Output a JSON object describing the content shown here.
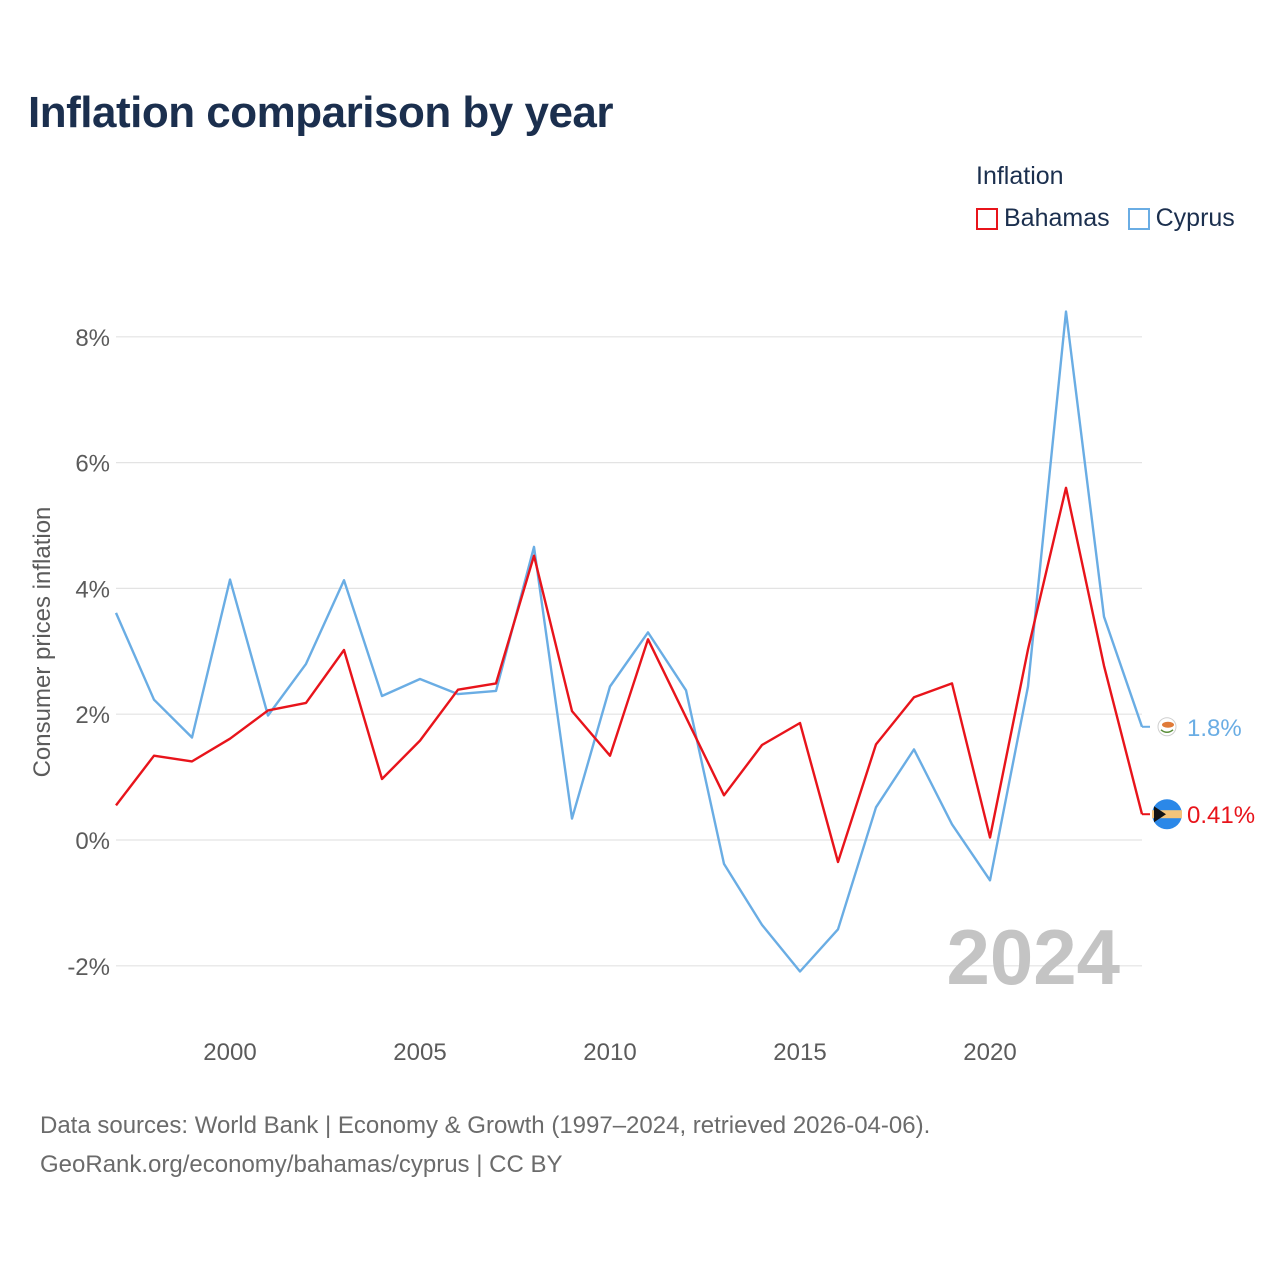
{
  "chart_data": {
    "type": "line",
    "title": "Inflation comparison by year",
    "legend_title": "Inflation",
    "ylabel": "Consumer prices inflation",
    "xlabel": "",
    "x": [
      1997,
      1998,
      1999,
      2000,
      2001,
      2002,
      2003,
      2004,
      2005,
      2006,
      2007,
      2008,
      2009,
      2010,
      2011,
      2012,
      2013,
      2014,
      2015,
      2016,
      2017,
      2018,
      2019,
      2020,
      2021,
      2022,
      2023,
      2024
    ],
    "xlim": [
      1997,
      2024
    ],
    "ylim": [
      -3,
      9
    ],
    "x_ticks": [
      2000,
      2005,
      2010,
      2015,
      2020
    ],
    "x_tick_labels": [
      "2000",
      "2005",
      "2010",
      "2015",
      "2020"
    ],
    "y_ticks": [
      -2,
      0,
      2,
      4,
      6,
      8
    ],
    "y_tick_labels": [
      "-2%",
      "0%",
      "2%",
      "4%",
      "6%",
      "8%"
    ],
    "grid": true,
    "legend_position": "top-right",
    "year_watermark": "2024",
    "series": [
      {
        "name": "Bahamas",
        "color": "#e8141b",
        "end_label": "0.41%",
        "values": [
          0.55,
          1.34,
          1.25,
          1.61,
          2.06,
          2.18,
          3.02,
          0.97,
          1.58,
          2.39,
          2.49,
          4.52,
          2.05,
          1.34,
          3.19,
          1.95,
          0.71,
          1.51,
          1.86,
          -0.35,
          1.52,
          2.27,
          2.49,
          0.04,
          3.03,
          5.6,
          2.77,
          0.41
        ]
      },
      {
        "name": "Cyprus",
        "color": "#6aade4",
        "end_label": "1.8%",
        "values": [
          3.61,
          2.23,
          1.63,
          4.14,
          1.98,
          2.8,
          4.13,
          2.29,
          2.56,
          2.32,
          2.37,
          4.66,
          0.34,
          2.44,
          3.3,
          2.38,
          -0.38,
          -1.35,
          -2.09,
          -1.42,
          0.52,
          1.44,
          0.25,
          -0.64,
          2.44,
          8.4,
          3.55,
          1.8
        ]
      }
    ],
    "icons": [
      "bahamas-flag-icon",
      "cyprus-flag-icon"
    ]
  },
  "footer": {
    "source_line1": "Data sources: World Bank | Economy & Growth (1997–2024, retrieved 2026-04-06).",
    "source_line2": "GeoRank.org/economy/bahamas/cyprus | CC BY"
  }
}
